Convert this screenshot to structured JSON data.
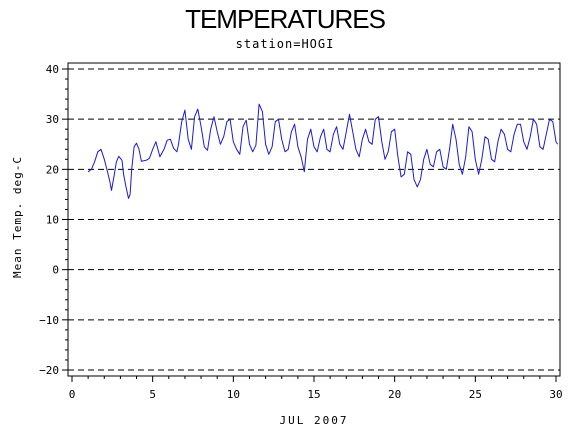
{
  "chart_data": {
    "type": "line",
    "title": "TEMPERATURES",
    "subtitle": "station=HOGI",
    "xlabel": "JUL 2007",
    "ylabel": "Mean Temp. deg-C",
    "xlim": [
      0,
      30
    ],
    "ylim": [
      -20,
      40
    ],
    "x_ticks": [
      0,
      5,
      10,
      15,
      20,
      25,
      30
    ],
    "y_ticks": [
      -20,
      -10,
      0,
      10,
      20,
      30,
      40
    ],
    "grid": "horizontal dashed lines at each y tick",
    "series": [
      {
        "color": "#1a1ad6",
        "points": [
          [
            1.0,
            19.5
          ],
          [
            1.2,
            20.0
          ],
          [
            1.4,
            21.5
          ],
          [
            1.6,
            23.5
          ],
          [
            1.8,
            24.0
          ],
          [
            2.0,
            22.0
          ],
          [
            2.2,
            19.5
          ],
          [
            2.35,
            17.5
          ],
          [
            2.45,
            15.8
          ],
          [
            2.6,
            18.5
          ],
          [
            2.75,
            21.5
          ],
          [
            2.9,
            22.6
          ],
          [
            3.1,
            21.8
          ],
          [
            3.2,
            19.0
          ],
          [
            3.35,
            16.5
          ],
          [
            3.5,
            14.2
          ],
          [
            3.6,
            15.0
          ],
          [
            3.7,
            20.0
          ],
          [
            3.85,
            24.5
          ],
          [
            4.0,
            25.2
          ],
          [
            4.15,
            24.0
          ],
          [
            4.3,
            21.6
          ],
          [
            4.6,
            21.8
          ],
          [
            4.8,
            22.2
          ],
          [
            5.0,
            24.0
          ],
          [
            5.2,
            25.5
          ],
          [
            5.45,
            22.5
          ],
          [
            5.7,
            24.0
          ],
          [
            5.9,
            25.8
          ],
          [
            6.1,
            26.0
          ],
          [
            6.3,
            24.2
          ],
          [
            6.5,
            23.5
          ],
          [
            6.6,
            25.0
          ],
          [
            6.8,
            29.5
          ],
          [
            7.0,
            31.8
          ],
          [
            7.2,
            26.0
          ],
          [
            7.4,
            24.0
          ],
          [
            7.6,
            30.5
          ],
          [
            7.8,
            32.0
          ],
          [
            8.0,
            28.5
          ],
          [
            8.2,
            24.5
          ],
          [
            8.4,
            23.8
          ],
          [
            8.6,
            28.0
          ],
          [
            8.8,
            30.5
          ],
          [
            9.0,
            27.5
          ],
          [
            9.2,
            25.0
          ],
          [
            9.4,
            26.5
          ],
          [
            9.6,
            29.5
          ],
          [
            9.8,
            30.0
          ],
          [
            10.0,
            25.5
          ],
          [
            10.2,
            24.0
          ],
          [
            10.4,
            23.0
          ],
          [
            10.6,
            28.5
          ],
          [
            10.8,
            29.8
          ],
          [
            11.0,
            25.0
          ],
          [
            11.2,
            23.5
          ],
          [
            11.4,
            24.8
          ],
          [
            11.6,
            33.0
          ],
          [
            11.8,
            31.5
          ],
          [
            12.0,
            25.0
          ],
          [
            12.2,
            23.0
          ],
          [
            12.4,
            24.5
          ],
          [
            12.6,
            29.5
          ],
          [
            12.8,
            30.0
          ],
          [
            13.0,
            26.0
          ],
          [
            13.2,
            23.5
          ],
          [
            13.4,
            24.0
          ],
          [
            13.6,
            27.5
          ],
          [
            13.8,
            29.0
          ],
          [
            14.0,
            24.5
          ],
          [
            14.2,
            22.5
          ],
          [
            14.4,
            19.5
          ],
          [
            14.6,
            26.0
          ],
          [
            14.8,
            28.0
          ],
          [
            15.0,
            24.5
          ],
          [
            15.2,
            23.5
          ],
          [
            15.4,
            26.5
          ],
          [
            15.6,
            28.0
          ],
          [
            15.8,
            24.0
          ],
          [
            16.0,
            23.5
          ],
          [
            16.2,
            27.0
          ],
          [
            16.4,
            28.5
          ],
          [
            16.6,
            25.0
          ],
          [
            16.8,
            24.0
          ],
          [
            17.0,
            27.5
          ],
          [
            17.2,
            31.0
          ],
          [
            17.4,
            27.5
          ],
          [
            17.6,
            24.0
          ],
          [
            17.8,
            22.5
          ],
          [
            18.0,
            26.0
          ],
          [
            18.2,
            28.0
          ],
          [
            18.4,
            25.5
          ],
          [
            18.6,
            25.0
          ],
          [
            18.8,
            30.0
          ],
          [
            19.0,
            30.5
          ],
          [
            19.2,
            25.5
          ],
          [
            19.4,
            22.0
          ],
          [
            19.6,
            23.5
          ],
          [
            19.8,
            27.5
          ],
          [
            20.0,
            28.0
          ],
          [
            20.2,
            22.5
          ],
          [
            20.4,
            18.5
          ],
          [
            20.6,
            19.0
          ],
          [
            20.8,
            23.5
          ],
          [
            21.0,
            23.0
          ],
          [
            21.2,
            18.0
          ],
          [
            21.4,
            16.5
          ],
          [
            21.6,
            18.0
          ],
          [
            21.8,
            22.0
          ],
          [
            22.0,
            24.0
          ],
          [
            22.2,
            21.0
          ],
          [
            22.4,
            20.5
          ],
          [
            22.6,
            23.5
          ],
          [
            22.8,
            24.0
          ],
          [
            23.0,
            20.5
          ],
          [
            23.2,
            20.0
          ],
          [
            23.4,
            24.0
          ],
          [
            23.6,
            29.0
          ],
          [
            23.8,
            26.0
          ],
          [
            24.0,
            21.0
          ],
          [
            24.2,
            19.0
          ],
          [
            24.4,
            22.5
          ],
          [
            24.6,
            28.5
          ],
          [
            24.8,
            27.5
          ],
          [
            25.0,
            22.0
          ],
          [
            25.2,
            19.0
          ],
          [
            25.4,
            22.0
          ],
          [
            25.6,
            26.5
          ],
          [
            25.8,
            26.0
          ],
          [
            26.0,
            22.0
          ],
          [
            26.2,
            21.5
          ],
          [
            26.4,
            25.5
          ],
          [
            26.6,
            28.0
          ],
          [
            26.8,
            27.0
          ],
          [
            27.0,
            24.0
          ],
          [
            27.2,
            23.5
          ],
          [
            27.4,
            27.0
          ],
          [
            27.6,
            29.0
          ],
          [
            27.8,
            29.0
          ],
          [
            28.0,
            25.5
          ],
          [
            28.2,
            24.0
          ],
          [
            28.4,
            26.5
          ],
          [
            28.6,
            30.0
          ],
          [
            28.8,
            29.0
          ],
          [
            29.0,
            24.5
          ],
          [
            29.2,
            24.0
          ],
          [
            29.4,
            27.0
          ],
          [
            29.6,
            30.0
          ],
          [
            29.8,
            29.5
          ],
          [
            30.0,
            25.5
          ],
          [
            30.1,
            25.0
          ]
        ]
      }
    ]
  }
}
